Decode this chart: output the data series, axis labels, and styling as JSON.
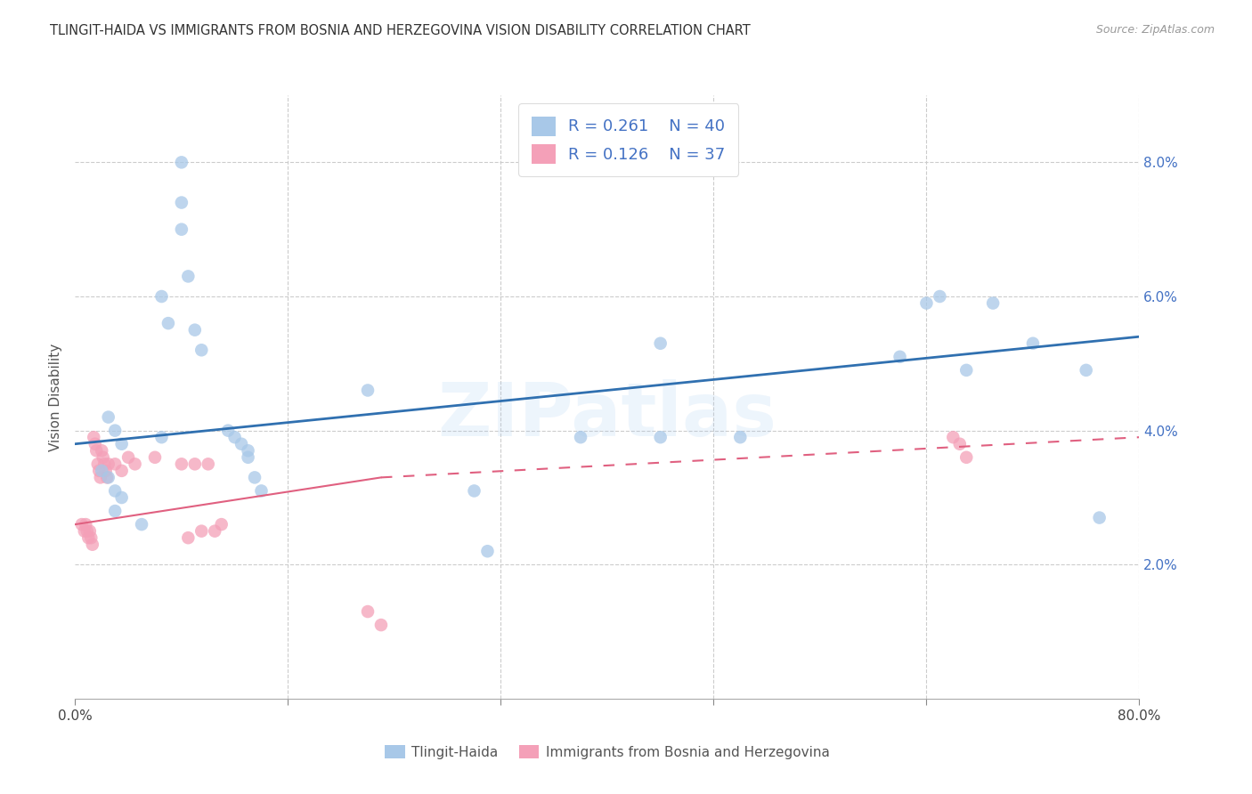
{
  "title": "TLINGIT-HAIDA VS IMMIGRANTS FROM BOSNIA AND HERZEGOVINA VISION DISABILITY CORRELATION CHART",
  "source": "Source: ZipAtlas.com",
  "ylabel": "Vision Disability",
  "xlim": [
    0,
    80
  ],
  "ylim": [
    0,
    9.0
  ],
  "legend_r1": "R = 0.261",
  "legend_n1": "N = 40",
  "legend_r2": "R = 0.126",
  "legend_n2": "N = 37",
  "color_blue": "#a8c8e8",
  "color_pink": "#f4a0b8",
  "color_blue_line": "#3070b0",
  "color_pink_line": "#e06080",
  "background_color": "#ffffff",
  "watermark": "ZIPatlas",
  "blue_x": [
    2.0,
    2.5,
    3.0,
    3.5,
    3.0,
    3.5,
    2.5,
    3.0,
    5.0,
    6.5,
    6.5,
    7.0,
    8.0,
    8.0,
    8.0,
    8.5,
    9.0,
    9.5,
    11.5,
    12.0,
    12.5,
    13.0,
    13.0,
    13.5,
    14.0,
    22.0,
    30.0,
    31.0,
    38.0,
    44.0,
    44.0,
    50.0,
    62.0,
    64.0,
    65.0,
    67.0,
    69.0,
    72.0,
    76.0,
    77.0
  ],
  "blue_y": [
    3.4,
    3.3,
    3.1,
    3.0,
    4.0,
    3.8,
    4.2,
    2.8,
    2.6,
    3.9,
    6.0,
    5.6,
    8.0,
    7.4,
    7.0,
    6.3,
    5.5,
    5.2,
    4.0,
    3.9,
    3.8,
    3.7,
    3.6,
    3.3,
    3.1,
    4.6,
    3.1,
    2.2,
    3.9,
    3.9,
    5.3,
    3.9,
    5.1,
    5.9,
    6.0,
    4.9,
    5.9,
    5.3,
    4.9,
    2.7
  ],
  "pink_x": [
    0.5,
    0.7,
    0.8,
    0.9,
    1.0,
    1.1,
    1.2,
    1.3,
    1.4,
    1.5,
    1.6,
    1.7,
    1.8,
    1.9,
    2.0,
    2.1,
    2.2,
    2.3,
    2.4,
    2.5,
    3.0,
    3.5,
    4.0,
    4.5,
    6.0,
    8.0,
    8.5,
    9.0,
    9.5,
    10.0,
    10.5,
    11.0,
    22.0,
    23.0,
    66.0,
    66.5,
    67.0
  ],
  "pink_y": [
    2.6,
    2.5,
    2.6,
    2.5,
    2.4,
    2.5,
    2.4,
    2.3,
    3.9,
    3.8,
    3.7,
    3.5,
    3.4,
    3.3,
    3.7,
    3.6,
    3.5,
    3.4,
    3.3,
    3.5,
    3.5,
    3.4,
    3.6,
    3.5,
    3.6,
    3.5,
    2.4,
    3.5,
    2.5,
    3.5,
    2.5,
    2.6,
    1.3,
    1.1,
    3.9,
    3.8,
    3.6
  ],
  "blue_line_x0": 0,
  "blue_line_x1": 80,
  "blue_line_y0": 3.8,
  "blue_line_y1": 5.4,
  "pink_solid_x0": 0,
  "pink_solid_x1": 23,
  "pink_solid_y0": 2.6,
  "pink_solid_y1": 3.3,
  "pink_dash_x0": 23,
  "pink_dash_x1": 80,
  "pink_dash_y0": 3.3,
  "pink_dash_y1": 3.9
}
